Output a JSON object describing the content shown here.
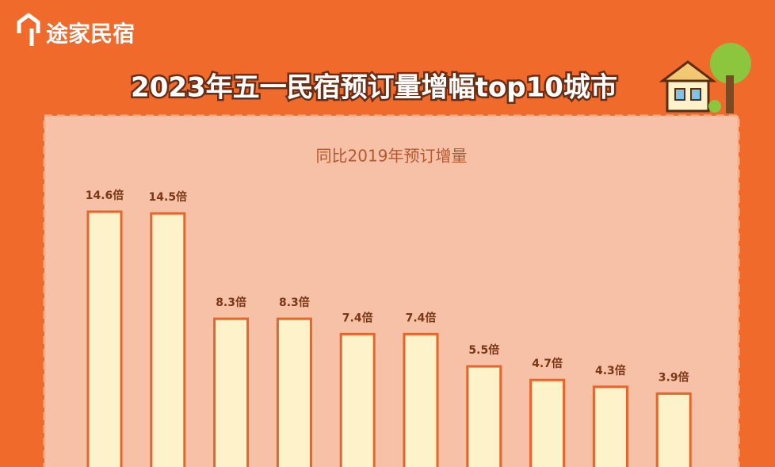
{
  "brand": "途家民宿",
  "chart_data": {
    "type": "bar",
    "title": "2023年五一民宿预订量增幅top10城市",
    "subtitle": "同比2019年预订增量",
    "values": [
      14.6,
      14.5,
      8.3,
      8.3,
      7.4,
      7.4,
      5.5,
      4.7,
      4.3,
      3.9
    ],
    "value_labels": [
      "14.6倍",
      "14.5倍",
      "8.3倍",
      "8.3倍",
      "7.4倍",
      "7.4倍",
      "5.5倍",
      "4.7倍",
      "4.3倍",
      "3.9倍"
    ],
    "color": "#fdf2c9"
  }
}
